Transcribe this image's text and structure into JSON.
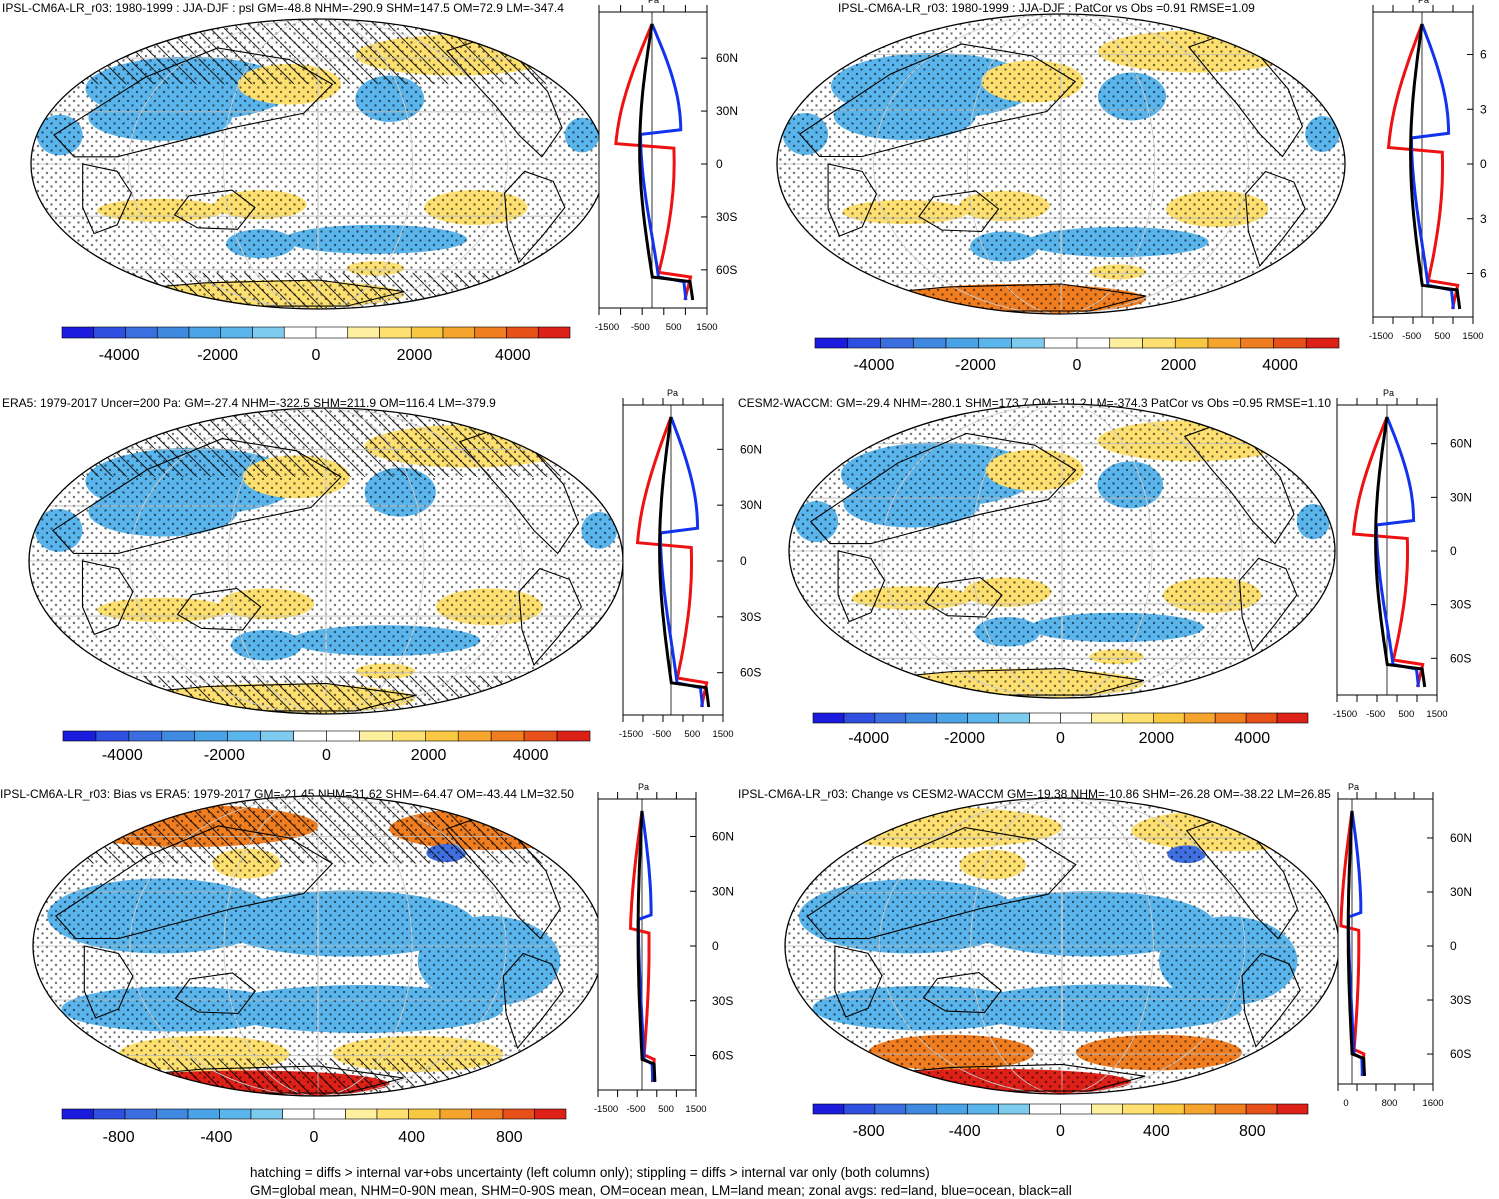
{
  "panels": [
    {
      "id": "p1",
      "title": "IPSL-CM6A-LR_r03: 1980-1999 : JJA-DJF : psl GM=-48.8 NHM=-290.9 SHM=147.5 OM=72.9 LM=-347.4",
      "colorbar_labels": [
        "-4000",
        "-2000",
        "0",
        "2000",
        "4000"
      ],
      "zonal_ticks": [
        "-1500",
        "-500",
        "500",
        "1500"
      ],
      "zonal_unit": "Pa",
      "lat_labels": [
        "60N",
        "30N",
        "0",
        "30S",
        "60S"
      ]
    },
    {
      "id": "p2",
      "title": "IPSL-CM6A-LR_r03: 1980-1999 : JJA-DJF : PatCor vs Obs =0.91 RMSE=1.09",
      "colorbar_labels": [
        "-4000",
        "-2000",
        "0",
        "2000",
        "4000"
      ],
      "zonal_ticks": [
        "-1500",
        "-500",
        "500",
        "1500"
      ],
      "zonal_unit": "Pa",
      "lat_labels": [
        "6",
        "3",
        "0",
        "3",
        "6"
      ]
    },
    {
      "id": "p3",
      "title": "ERA5: 1979-2017 Uncer=200 Pa: GM=-27.4 NHM=-322.5 SHM=211.9 OM=116.4 LM=-379.9",
      "colorbar_labels": [
        "-4000",
        "-2000",
        "0",
        "2000",
        "4000"
      ],
      "zonal_ticks": [
        "-1500",
        "-500",
        "500",
        "1500"
      ],
      "zonal_unit": "Pa",
      "lat_labels": [
        "60N",
        "30N",
        "0",
        "30S",
        "60S"
      ]
    },
    {
      "id": "p4",
      "title": "CESM2-WACCM: GM=-29.4 NHM=-280.1 SHM=173.7 OM=111.2 LM=-374.3 PatCor vs Obs =0.95 RMSE=1.10",
      "colorbar_labels": [
        "-4000",
        "-2000",
        "0",
        "2000",
        "4000"
      ],
      "zonal_ticks": [
        "-1500",
        "-500",
        "500",
        "1500"
      ],
      "zonal_unit": "Pa",
      "lat_labels": [
        "60N",
        "30N",
        "0",
        "30S",
        "60S"
      ]
    },
    {
      "id": "p5",
      "title": "IPSL-CM6A-LR_r03: Bias vs ERA5: 1979-2017 GM=-21.45 NHM=31.62 SHM=-64.47 OM=-43.44 LM=32.50",
      "colorbar_labels": [
        "-800",
        "-400",
        "0",
        "400",
        "800"
      ],
      "zonal_ticks": [
        "-1500",
        "-500",
        "500",
        "1500"
      ],
      "zonal_unit": "Pa",
      "lat_labels": [
        "60N",
        "30N",
        "0",
        "30S",
        "60S"
      ]
    },
    {
      "id": "p6",
      "title": "IPSL-CM6A-LR_r03: Change vs CESM2-WACCM GM=-19.38 NHM=-10.86 SHM=-26.28 OM=-38.22 LM=26.85",
      "colorbar_labels": [
        "-800",
        "-400",
        "0",
        "400",
        "800"
      ],
      "zonal_ticks": [
        "0",
        "800",
        "1600"
      ],
      "zonal_unit": "Pa",
      "lat_labels": [
        "60N",
        "30N",
        "0",
        "30S",
        "60S"
      ]
    }
  ],
  "footer": {
    "line1": "hatching = diffs > internal var+obs uncertainty (left column only); stippling = diffs > internal var only (both columns)",
    "line2": "GM=global mean, NHM=0-90N mean, SHM=0-90S mean, OM=ocean mean, LM=land mean; zonal avgs: red=land, blue=ocean, black=all"
  },
  "colors": {
    "colorbar": [
      "#1b1bdd",
      "#2e4fe0",
      "#3b6fe0",
      "#3f8ae0",
      "#49a3e6",
      "#5ab5ec",
      "#7ecbf0",
      "#ffffff",
      "#ffffff",
      "#fff0a0",
      "#fde070",
      "#f9c843",
      "#f5a52e",
      "#f07d1f",
      "#e8501a",
      "#dd2018"
    ],
    "land_line": "#ee1111",
    "ocean_line": "#1133ee",
    "all_line": "#000000",
    "neg_fill": "#5ab5ec",
    "pos_fill": "#fde070",
    "strong_pos_fill": "#f07d1f",
    "strong_neg_fill": "#3f6fe0"
  }
}
